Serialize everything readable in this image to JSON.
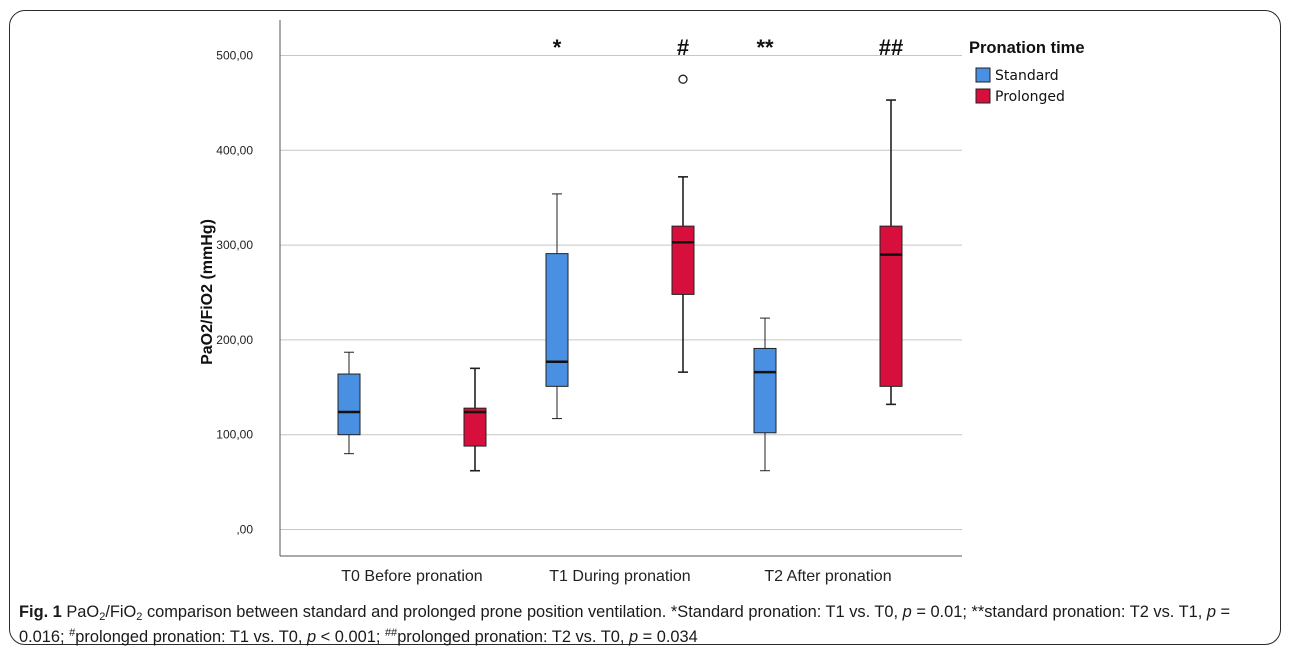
{
  "chart_data": {
    "type": "boxplot",
    "ylabel": "PaO2/FiO2 (mmHg)",
    "ylim": [
      -30,
      520
    ],
    "yticks": [
      0,
      100,
      200,
      300,
      400,
      500
    ],
    "ytick_labels": [
      ",00",
      "100,00",
      "200,00",
      "300,00",
      "400,00",
      "500,00"
    ],
    "grid": true,
    "categories": [
      "T0 Before pronation",
      "T1 During pronation",
      "T2 After pronation"
    ],
    "legend_title": "Pronation time",
    "legend_position": "top-right",
    "series": [
      {
        "name": "Standard",
        "color": "#4a90e2",
        "boxes": [
          {
            "min": 80,
            "q1": 100,
            "median": 124,
            "q3": 164,
            "max": 187,
            "outliers": []
          },
          {
            "min": 117,
            "q1": 151,
            "median": 177,
            "q3": 291,
            "max": 354,
            "outliers": []
          },
          {
            "min": 62,
            "q1": 102,
            "median": 166,
            "q3": 191,
            "max": 223,
            "outliers": []
          }
        ]
      },
      {
        "name": "Prolonged",
        "color": "#d60f3c",
        "boxes": [
          {
            "min": 62,
            "q1": 88,
            "median": 124,
            "q3": 128,
            "max": 170,
            "outliers": []
          },
          {
            "min": 166,
            "q1": 248,
            "median": 303,
            "q3": 320,
            "max": 372,
            "outliers": [
              475
            ]
          },
          {
            "min": 132,
            "q1": 151,
            "median": 290,
            "q3": 320,
            "max": 453,
            "outliers": []
          }
        ]
      }
    ],
    "annotations": [
      {
        "category_index": 1,
        "series_index": 0,
        "text": "*"
      },
      {
        "category_index": 1,
        "series_index": 1,
        "text": "#"
      },
      {
        "category_index": 2,
        "series_index": 0,
        "text": "**"
      },
      {
        "category_index": 2,
        "series_index": 1,
        "text": "##"
      }
    ]
  },
  "caption": {
    "fig_label": "Fig. 1",
    "t1": "PaO",
    "sub1": "2",
    "t2": "/FiO",
    "sub2": "2",
    "t3": " comparison between standard and prolonged prone position ventilation. *Standard pronation: T1 vs. T0, ",
    "p1": "p",
    "t4": " = 0.01; **standard pronation: T2 vs. T1, ",
    "p2": "p",
    "t5": " = 0.016; ",
    "sup1": "#",
    "t6": "prolonged pronation: T1 vs. T0, ",
    "p3": "p",
    "t7": " < 0.001; ",
    "sup2": "##",
    "t8": "prolonged pronation: T2 vs. T0, ",
    "p4": "p",
    "t9": " = 0.034"
  }
}
